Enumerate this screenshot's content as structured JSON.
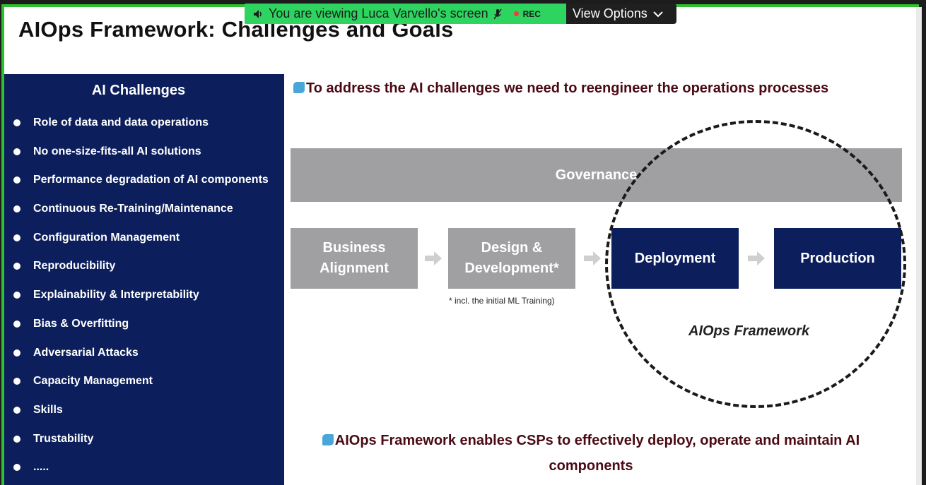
{
  "screen_share": {
    "viewing_text": "You are viewing Luca Varvello's screen",
    "rec_label": "REC",
    "view_options_label": "View Options"
  },
  "slide": {
    "title": "AIOps Framework: Challenges and Goals",
    "challenges": {
      "title": "AI Challenges",
      "items": [
        "Role of data and data operations",
        "No one-size-fits-all AI solutions",
        "Performance degradation of AI components",
        "Continuous Re-Training/Maintenance",
        "Configuration Management",
        "Reproducibility",
        "Explainability & Interpretability",
        "Bias & Overfitting",
        "Adversarial Attacks",
        "Capacity Management",
        "Skills",
        "Trustability",
        "....."
      ]
    },
    "headline": "To address the AI challenges we need to reengineer the operations processes",
    "governance_label": "Governance",
    "steps": {
      "business_line1": "Business",
      "business_line2": "Alignment",
      "design_line1": "Design &",
      "design_line2": "Development*",
      "deployment": "Deployment",
      "production": "Production"
    },
    "footnote": "* incl. the initial ML Training)",
    "framework_label": "AIOps Framework",
    "bottom_line1": "AIOps Framework enables CSPs to effectively deploy, operate and maintain AI",
    "bottom_line2": "components"
  },
  "colors": {
    "navy": "#0c1f5c",
    "gray_box": "#a09fa2",
    "headline_text": "#4a0a14",
    "share_green": "#2dd460",
    "frame_green": "#2fbf2f",
    "bullet_icon": "#4aa6d8"
  },
  "icons": [
    "speaker-icon",
    "mic-muted-icon",
    "rec-dot-icon",
    "chevron-down-icon",
    "arrow-right-icon",
    "bullet-tag-icon"
  ]
}
